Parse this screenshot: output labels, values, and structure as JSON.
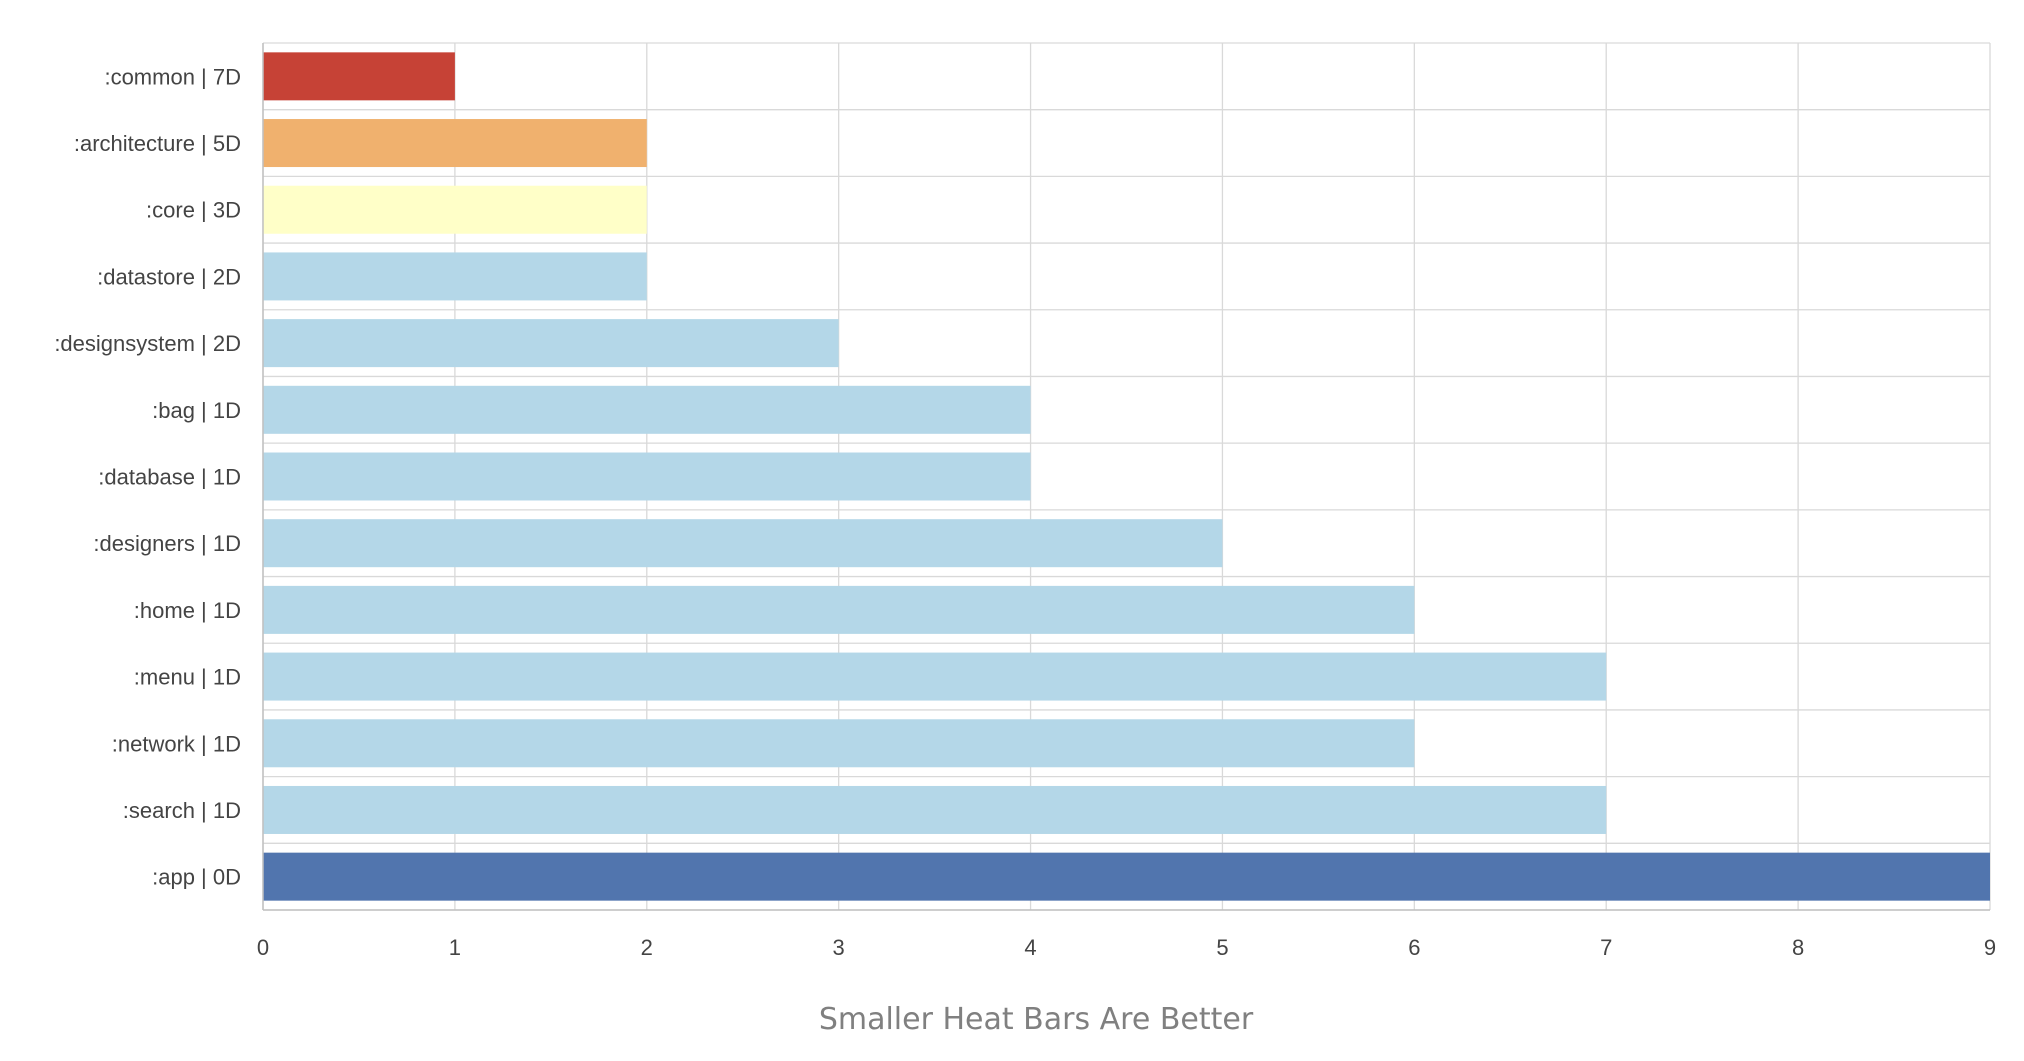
{
  "chart_data": {
    "type": "bar",
    "orientation": "horizontal",
    "categories": [
      ":common | 7D",
      ":architecture | 5D",
      ":core | 3D",
      ":datastore | 2D",
      ":designsystem | 2D",
      ":bag | 1D",
      ":database | 1D",
      ":designers | 1D",
      ":home | 1D",
      ":menu | 1D",
      ":network | 1D",
      ":search | 1D",
      ":app | 0D"
    ],
    "values": [
      1,
      2,
      2,
      2,
      3,
      4,
      4,
      5,
      6,
      7,
      6,
      7,
      9
    ],
    "bar_colors": [
      "#c64236",
      "#f0b16e",
      "#ffffc8",
      "#b4d7e8",
      "#b4d7e8",
      "#b4d7e8",
      "#b4d7e8",
      "#b4d7e8",
      "#b4d7e8",
      "#b4d7e8",
      "#b4d7e8",
      "#b4d7e8",
      "#5175ae"
    ],
    "xlabel": "Smaller Heat Bars Are Better",
    "xlim": [
      0,
      9
    ],
    "xticks": [
      0,
      1,
      2,
      3,
      4,
      5,
      6,
      7,
      8,
      9
    ],
    "grid": true,
    "legend": "none"
  }
}
